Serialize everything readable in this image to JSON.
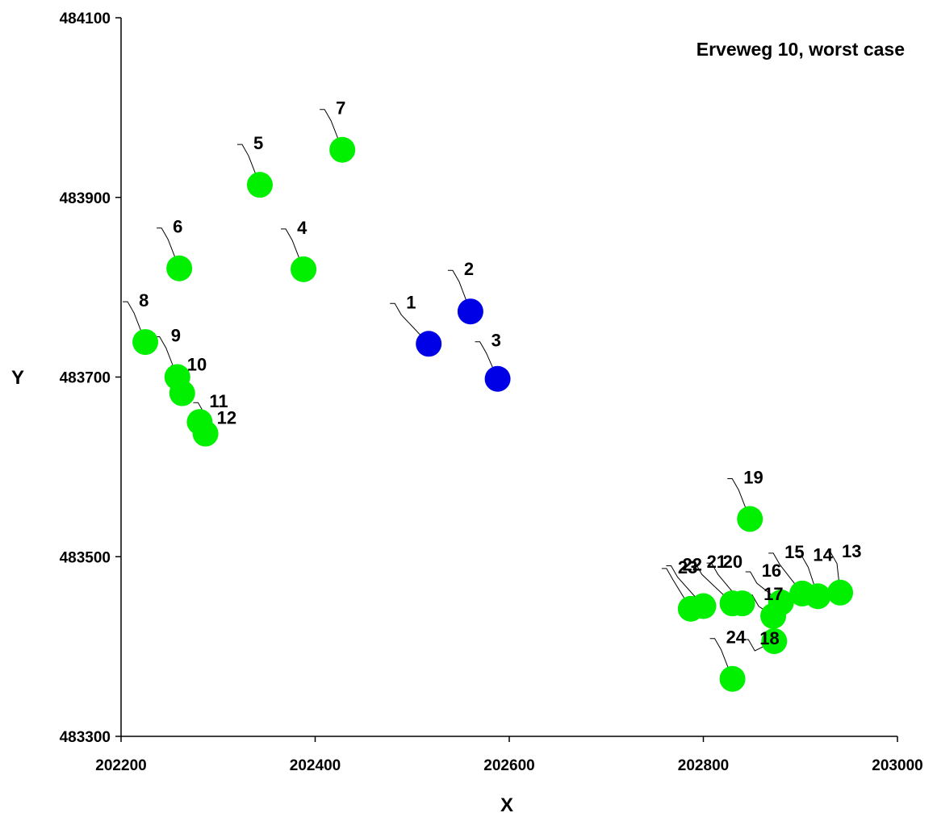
{
  "chart_data": {
    "type": "scatter",
    "title": "Erveweg 10, worst case",
    "xlabel": "X",
    "ylabel": "Y",
    "xlim": [
      202200,
      203000
    ],
    "ylim": [
      483300,
      484100
    ],
    "xticks": [
      202200,
      202400,
      202600,
      202800,
      203000
    ],
    "yticks": [
      483300,
      483500,
      483700,
      483900,
      484100
    ],
    "xtick_labels": [
      "202200",
      "202400",
      "202600",
      "202800",
      "203000"
    ],
    "ytick_labels": [
      "483300",
      "483500",
      "483700",
      "483900",
      "484100"
    ],
    "grid": false,
    "colors": {
      "blue": "#0000e6",
      "green": "#00f000"
    },
    "points": [
      {
        "label": "1",
        "x": 202517,
        "y": 483737,
        "color": "blue"
      },
      {
        "label": "2",
        "x": 202560,
        "y": 483773,
        "color": "blue"
      },
      {
        "label": "3",
        "x": 202588,
        "y": 483698,
        "color": "blue"
      },
      {
        "label": "4",
        "x": 202388,
        "y": 483820,
        "color": "green"
      },
      {
        "label": "5",
        "x": 202343,
        "y": 483914,
        "color": "green"
      },
      {
        "label": "6",
        "x": 202260,
        "y": 483821,
        "color": "green"
      },
      {
        "label": "7",
        "x": 202428,
        "y": 483953,
        "color": "green"
      },
      {
        "label": "8",
        "x": 202225,
        "y": 483739,
        "color": "green"
      },
      {
        "label": "9",
        "x": 202258,
        "y": 483700,
        "color": "green"
      },
      {
        "label": "10",
        "x": 202263,
        "y": 483682,
        "color": "green"
      },
      {
        "label": "11",
        "x": 202281,
        "y": 483650,
        "color": "green"
      },
      {
        "label": "12",
        "x": 202287,
        "y": 483637,
        "color": "green"
      },
      {
        "label": "13",
        "x": 202941,
        "y": 483460,
        "color": "green"
      },
      {
        "label": "14",
        "x": 202918,
        "y": 483456,
        "color": "green"
      },
      {
        "label": "15",
        "x": 202902,
        "y": 483459,
        "color": "green"
      },
      {
        "label": "16",
        "x": 202880,
        "y": 483449,
        "color": "green"
      },
      {
        "label": "17",
        "x": 202872,
        "y": 483434,
        "color": "green"
      },
      {
        "label": "18",
        "x": 202873,
        "y": 483406,
        "color": "green"
      },
      {
        "label": "19",
        "x": 202848,
        "y": 483542,
        "color": "green"
      },
      {
        "label": "20",
        "x": 202840,
        "y": 483448,
        "color": "green"
      },
      {
        "label": "21",
        "x": 202830,
        "y": 483448,
        "color": "green"
      },
      {
        "label": "22",
        "x": 202800,
        "y": 483445,
        "color": "green"
      },
      {
        "label": "23",
        "x": 202787,
        "y": 483442,
        "color": "green"
      },
      {
        "label": "24",
        "x": 202830,
        "y": 483364,
        "color": "green"
      }
    ]
  }
}
